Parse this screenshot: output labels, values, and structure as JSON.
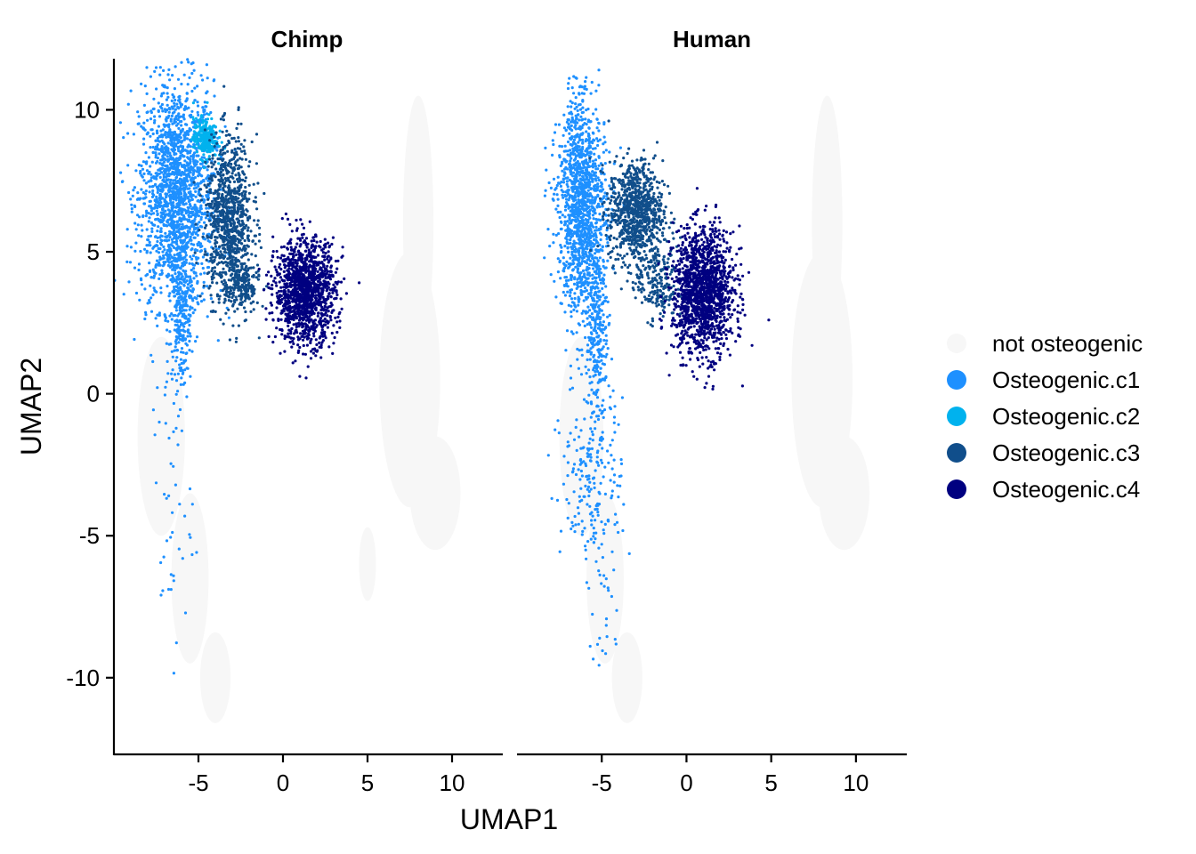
{
  "chart_data": {
    "type": "scatter",
    "xlabel": "UMAP1",
    "ylabel": "UMAP2",
    "xlim": [
      -10,
      13
    ],
    "ylim": [
      -12.7,
      11.8
    ],
    "x_ticks": [
      -5,
      0,
      5,
      10
    ],
    "x_tick_labels": [
      "-5",
      "0",
      "5",
      "10"
    ],
    "y_ticks": [
      10,
      5,
      0,
      -5,
      -10
    ],
    "y_tick_labels": [
      "10",
      "5",
      "0",
      "-5",
      "-10"
    ],
    "panels": [
      "Chimp",
      "Human"
    ],
    "legend_position": "right",
    "grid": false,
    "series": [
      {
        "name": "not osteogenic",
        "color": "#F7F7F7"
      },
      {
        "name": "Osteogenic.c1",
        "color": "#1E90FF"
      },
      {
        "name": "Osteogenic.c2",
        "color": "#00B2EE"
      },
      {
        "name": "Osteogenic.c3",
        "color": "#104E8B"
      },
      {
        "name": "Osteogenic.c4",
        "color": "#000080"
      }
    ],
    "clusters": {
      "Chimp": [
        {
          "series": 0,
          "type": "region",
          "cx": -7.2,
          "cy": -1.5,
          "rx": 1.4,
          "ry": 3.5
        },
        {
          "series": 0,
          "type": "region",
          "cx": -5.5,
          "cy": -6.5,
          "rx": 1.1,
          "ry": 3.0
        },
        {
          "series": 0,
          "type": "region",
          "cx": -4.0,
          "cy": -10.0,
          "rx": 0.9,
          "ry": 1.6
        },
        {
          "series": 0,
          "type": "region",
          "cx": 8.0,
          "cy": 6.0,
          "rx": 0.9,
          "ry": 4.5
        },
        {
          "series": 0,
          "type": "region",
          "cx": 7.5,
          "cy": 0.5,
          "rx": 1.8,
          "ry": 4.5
        },
        {
          "series": 0,
          "type": "region",
          "cx": 9.0,
          "cy": -3.5,
          "rx": 1.5,
          "ry": 2.0
        },
        {
          "series": 0,
          "type": "region",
          "cx": 5.0,
          "cy": -6.0,
          "rx": 0.5,
          "ry": 1.3
        },
        {
          "series": 1,
          "type": "dots",
          "cx": -6.3,
          "cy": 7.0,
          "sx": 1.1,
          "sy": 2.0,
          "n": 1800
        },
        {
          "series": 1,
          "type": "dots",
          "cx": -6.0,
          "cy": 3.0,
          "sx": 0.3,
          "sy": 1.4,
          "n": 260
        },
        {
          "series": 1,
          "type": "dots",
          "cx": -6.6,
          "cy": -4.0,
          "sx": 0.6,
          "sy": 2.6,
          "n": 45
        },
        {
          "series": 2,
          "type": "dots",
          "cx": -4.6,
          "cy": 9.0,
          "sx": 0.35,
          "sy": 0.35,
          "n": 260
        },
        {
          "series": 3,
          "type": "dots",
          "cx": -3.2,
          "cy": 6.2,
          "sx": 0.7,
          "sy": 1.4,
          "n": 900
        },
        {
          "series": 3,
          "type": "dots",
          "cx": -2.4,
          "cy": 3.8,
          "sx": 0.5,
          "sy": 0.5,
          "n": 200
        },
        {
          "series": 4,
          "type": "dots",
          "cx": 1.3,
          "cy": 3.6,
          "sx": 0.9,
          "sy": 0.9,
          "n": 1300
        }
      ],
      "Human": [
        {
          "series": 0,
          "type": "region",
          "cx": -6.2,
          "cy": -1.5,
          "rx": 1.3,
          "ry": 3.5
        },
        {
          "series": 0,
          "type": "region",
          "cx": -4.8,
          "cy": -6.5,
          "rx": 1.1,
          "ry": 3.0
        },
        {
          "series": 0,
          "type": "region",
          "cx": -3.5,
          "cy": -10.0,
          "rx": 0.9,
          "ry": 1.6
        },
        {
          "series": 0,
          "type": "region",
          "cx": 8.3,
          "cy": 6.0,
          "rx": 0.9,
          "ry": 4.5
        },
        {
          "series": 0,
          "type": "region",
          "cx": 8.0,
          "cy": 0.5,
          "rx": 1.8,
          "ry": 4.5
        },
        {
          "series": 0,
          "type": "region",
          "cx": 9.3,
          "cy": -3.5,
          "rx": 1.5,
          "ry": 2.0
        },
        {
          "series": 1,
          "type": "dots",
          "cx": -6.2,
          "cy": 6.5,
          "sx": 0.7,
          "sy": 1.8,
          "n": 1300
        },
        {
          "series": 1,
          "type": "dots",
          "cx": -5.3,
          "cy": 2.5,
          "sx": 0.3,
          "sy": 1.5,
          "n": 260
        },
        {
          "series": 1,
          "type": "dots",
          "cx": -5.5,
          "cy": -2.5,
          "sx": 0.9,
          "sy": 1.8,
          "n": 240
        },
        {
          "series": 1,
          "type": "dots",
          "cx": -4.8,
          "cy": -7.5,
          "sx": 0.5,
          "sy": 1.5,
          "n": 25
        },
        {
          "series": 3,
          "type": "dots",
          "cx": -3.0,
          "cy": 6.4,
          "sx": 0.8,
          "sy": 0.9,
          "n": 850
        },
        {
          "series": 3,
          "type": "dots",
          "cx": -1.8,
          "cy": 4.0,
          "sx": 0.6,
          "sy": 0.7,
          "n": 220
        },
        {
          "series": 4,
          "type": "dots",
          "cx": 1.0,
          "cy": 3.6,
          "sx": 0.9,
          "sy": 1.1,
          "n": 1500
        },
        {
          "series": 1,
          "type": "dots",
          "cx": -6.5,
          "cy": 9.7,
          "sx": 0.3,
          "sy": 0.4,
          "n": 40
        }
      ]
    }
  }
}
